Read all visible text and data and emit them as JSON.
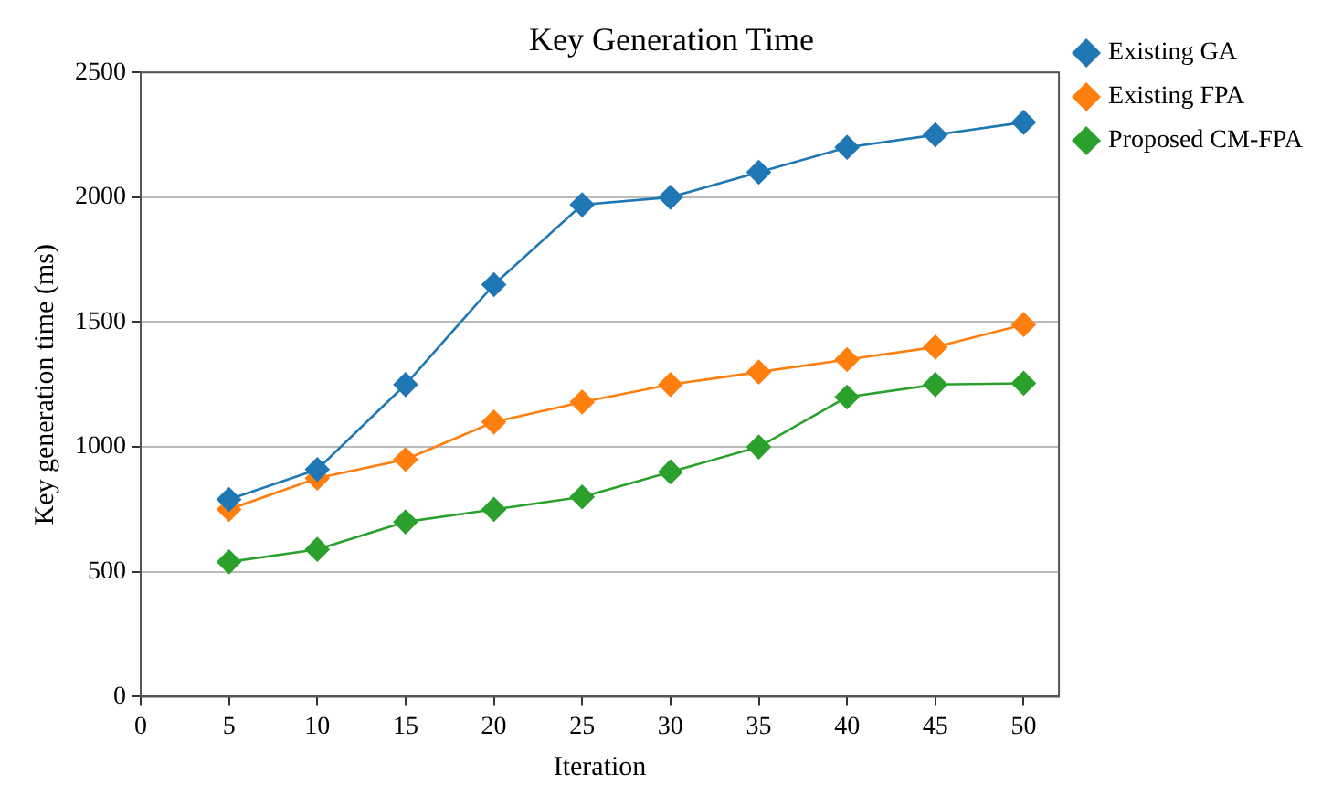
{
  "chart_data": {
    "type": "line",
    "title": "Key Generation Time",
    "xlabel": "Iteration",
    "ylabel": "Key generation time (ms)",
    "x": [
      5,
      10,
      15,
      20,
      25,
      30,
      35,
      40,
      45,
      50
    ],
    "series": [
      {
        "name": "Existing GA",
        "color": "#1f77b4",
        "values": [
          790,
          910,
          1250,
          1650,
          1970,
          2000,
          2100,
          2200,
          2250,
          2300
        ]
      },
      {
        "name": "Existing FPA",
        "color": "#ff7f0e",
        "values": [
          750,
          875,
          950,
          1100,
          1180,
          1250,
          1300,
          1350,
          1400,
          1490
        ]
      },
      {
        "name": "Proposed CM-FPA",
        "color": "#2ca02c",
        "values": [
          540,
          590,
          700,
          750,
          800,
          900,
          1000,
          1200,
          1250,
          1255
        ]
      }
    ],
    "xlim": [
      0,
      52
    ],
    "xticks": [
      0,
      5,
      10,
      15,
      20,
      25,
      30,
      35,
      40,
      45,
      50
    ],
    "ylim": [
      0,
      2500
    ],
    "yticks": [
      0,
      500,
      1000,
      1500,
      2000,
      2500
    ],
    "grid": "y",
    "legend": "top right",
    "marker": "diamond",
    "line_style": "solid"
  }
}
